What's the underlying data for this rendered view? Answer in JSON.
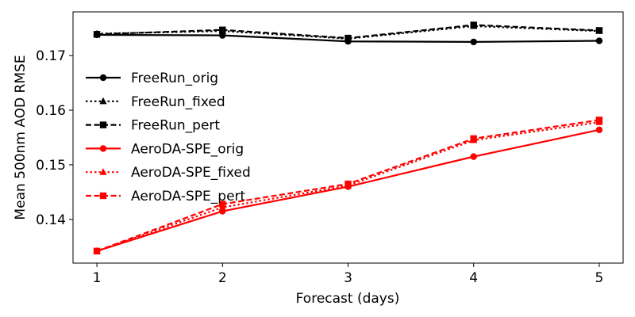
{
  "chart_data": {
    "type": "line",
    "xlabel": "Forecast (days)",
    "ylabel": "Mean 500nm AOD RMSE",
    "x": [
      1,
      2,
      3,
      4,
      5
    ],
    "xlim": [
      0.81,
      5.19
    ],
    "ylim": [
      0.132,
      0.178
    ],
    "xticks": [
      1,
      2,
      3,
      4,
      5
    ],
    "xtick_labels": [
      "1",
      "2",
      "3",
      "4",
      "5"
    ],
    "yticks": [
      0.14,
      0.15,
      0.16,
      0.17
    ],
    "ytick_labels": [
      "0.14",
      "0.15",
      "0.16",
      "0.17"
    ],
    "grid": false,
    "legend_position": "center-left",
    "series": [
      {
        "name": "FreeRun_orig",
        "color": "#000000",
        "linestyle": "solid",
        "marker": "circle",
        "values": [
          0.1738,
          0.1737,
          0.1726,
          0.1725,
          0.1727
        ]
      },
      {
        "name": "FreeRun_fixed",
        "color": "#000000",
        "linestyle": "dotted",
        "marker": "triangle",
        "values": [
          0.174,
          0.1745,
          0.1731,
          0.1754,
          0.1745
        ]
      },
      {
        "name": "FreeRun_pert",
        "color": "#000000",
        "linestyle": "dashed",
        "marker": "square",
        "values": [
          0.1739,
          0.1747,
          0.1732,
          0.1756,
          0.1746
        ]
      },
      {
        "name": "AeroDA-SPE_orig",
        "color": "#ff0000",
        "linestyle": "solid",
        "marker": "circle",
        "values": [
          0.1342,
          0.1415,
          0.146,
          0.1515,
          0.1564
        ]
      },
      {
        "name": "AeroDA-SPE_fixed",
        "color": "#ff0000",
        "linestyle": "dotted",
        "marker": "triangle",
        "values": [
          0.1342,
          0.1422,
          0.1462,
          0.1545,
          0.1578
        ]
      },
      {
        "name": "AeroDA-SPE_pert",
        "color": "#ff0000",
        "linestyle": "dashed",
        "marker": "square",
        "values": [
          0.1342,
          0.1428,
          0.1465,
          0.1548,
          0.1582
        ]
      }
    ]
  }
}
